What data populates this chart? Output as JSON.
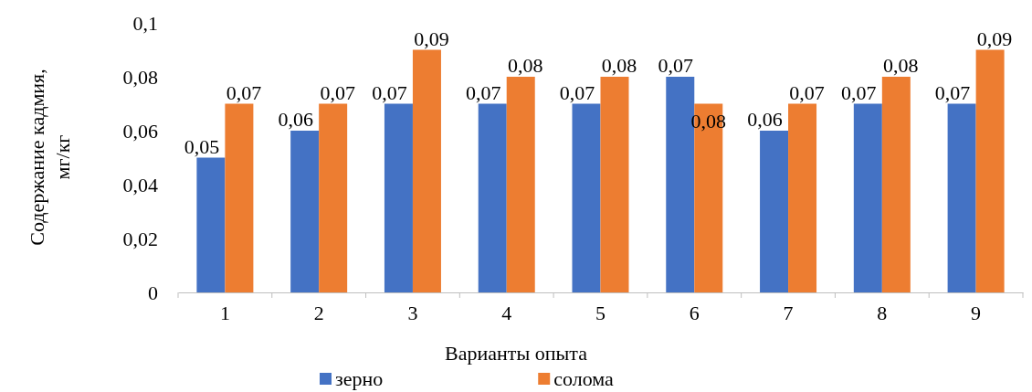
{
  "chart_data": {
    "type": "bar",
    "xlabel": "Варианты опыта",
    "ylabel": "Содержание кадмия, мг/кг",
    "categories": [
      "1",
      "2",
      "3",
      "4",
      "5",
      "6",
      "7",
      "8",
      "9"
    ],
    "series": [
      {
        "name": "зерно",
        "color": "#4472c4",
        "values": [
          0.05,
          0.06,
          0.07,
          0.07,
          0.07,
          0.08,
          0.06,
          0.07,
          0.07
        ],
        "value_labels": [
          "0,05",
          "0,06",
          "0,07",
          "0,07",
          "0,07",
          null,
          "0,06",
          "0,07",
          "0,07"
        ]
      },
      {
        "name": "солома",
        "color": "#ed7d31",
        "values": [
          0.07,
          0.07,
          0.09,
          0.08,
          0.08,
          0.07,
          0.07,
          0.08,
          0.09
        ],
        "value_labels": [
          "0,07",
          "0,07",
          "0,09",
          "0,08",
          "0,08",
          null,
          "0,07",
          "0,08",
          "0,09"
        ]
      }
    ],
    "annotations": [
      {
        "text": "0,07",
        "x": "6",
        "y": 0.08
      },
      {
        "text": "0,08",
        "x": "6",
        "y": 0.07
      }
    ],
    "ylim": [
      0,
      0.1
    ],
    "yticks": [
      {
        "value": 0,
        "label": "0"
      },
      {
        "value": 0.02,
        "label": "0,02"
      },
      {
        "value": 0.04,
        "label": "0,04"
      },
      {
        "value": 0.06,
        "label": "0,06"
      },
      {
        "value": 0.08,
        "label": "0,08"
      },
      {
        "value": 0.1,
        "label": "0,1"
      }
    ],
    "legend": "bottom"
  }
}
